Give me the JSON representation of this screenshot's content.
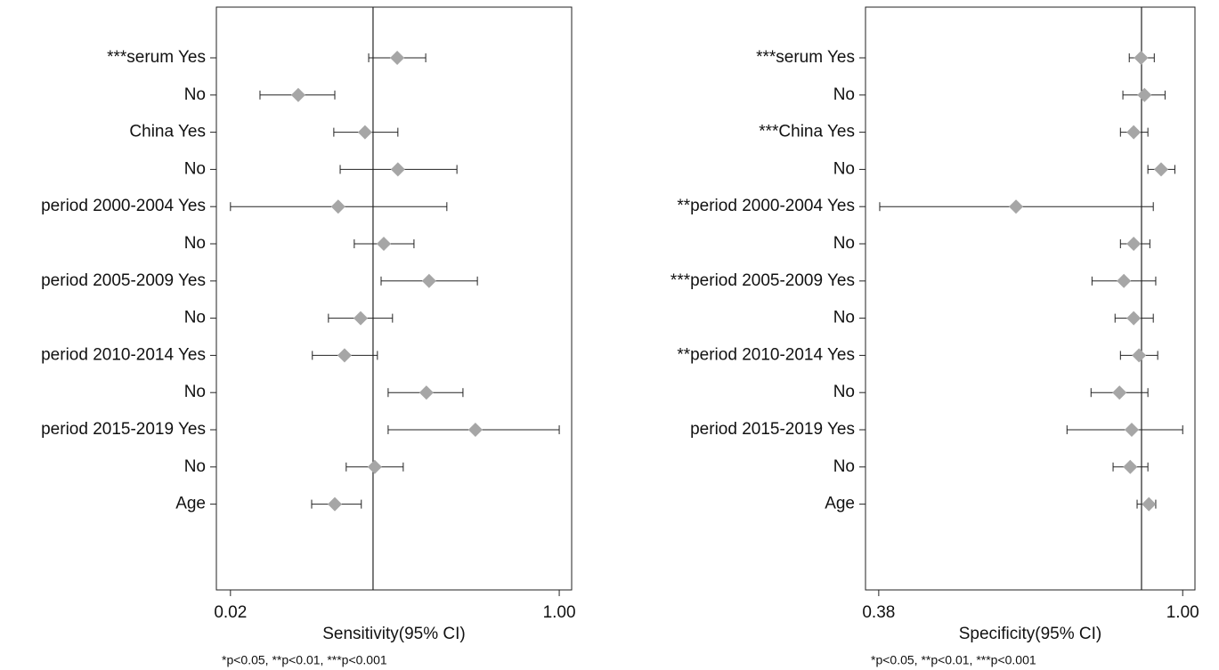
{
  "chart_data": [
    {
      "type": "forest",
      "xlabel": "Sensitivity(95% CI)",
      "footnote": "*p<0.05, **p<0.01, ***p<0.001",
      "categories": [
        "***serum Yes",
        "No",
        "China Yes",
        "No",
        "period 2000-2004 Yes",
        "No",
        "period 2005-2009 Yes",
        "No",
        "period 2010-2014 Yes",
        "No",
        "period 2015-2019 Yes",
        "No",
        "Age"
      ],
      "values": [
        0.517,
        0.222,
        0.421,
        0.519,
        0.341,
        0.477,
        0.612,
        0.408,
        0.36,
        0.604,
        0.75,
        0.45,
        0.331
      ],
      "lower": [
        0.432,
        0.108,
        0.328,
        0.347,
        0.02,
        0.389,
        0.469,
        0.312,
        0.264,
        0.49,
        0.49,
        0.365,
        0.262
      ],
      "upper": [
        0.602,
        0.331,
        0.519,
        0.695,
        0.665,
        0.567,
        0.756,
        0.503,
        0.458,
        0.713,
        1.0,
        0.535,
        0.41
      ],
      "reference": 0.445,
      "xlim": [
        -0.022,
        1.037
      ],
      "xticks": [
        0.02,
        {
          "value": 1.0,
          "label": "1.00"
        }
      ],
      "color": "#a6a6a6"
    },
    {
      "type": "forest",
      "xlabel": "Specificity(95% CI)",
      "footnote": "*p<0.05, **p<0.01, ***p<0.001",
      "categories": [
        "***serum Yes",
        "No",
        "***China Yes",
        "No",
        "**period 2000-2004 Yes",
        "No",
        "***period 2005-2009 Yes",
        "No",
        "**period 2010-2014 Yes",
        "No",
        "period 2015-2019 Yes",
        "No",
        "Age"
      ],
      "values": [
        0.915,
        0.922,
        0.9,
        0.956,
        0.66,
        0.9,
        0.88,
        0.9,
        0.911,
        0.871,
        0.896,
        0.893,
        0.931
      ],
      "lower": [
        0.891,
        0.878,
        0.873,
        0.929,
        0.382,
        0.873,
        0.815,
        0.862,
        0.873,
        0.813,
        0.764,
        0.858,
        0.907
      ],
      "upper": [
        0.942,
        0.964,
        0.929,
        0.984,
        0.94,
        0.933,
        0.945,
        0.94,
        0.949,
        0.929,
        1.0,
        0.929,
        0.945
      ],
      "reference": 0.916,
      "xlim": [
        0.353,
        1.025
      ],
      "xticks": [
        0.38,
        {
          "value": 1.0,
          "label": "1.00"
        }
      ],
      "color": "#a6a6a6"
    }
  ]
}
